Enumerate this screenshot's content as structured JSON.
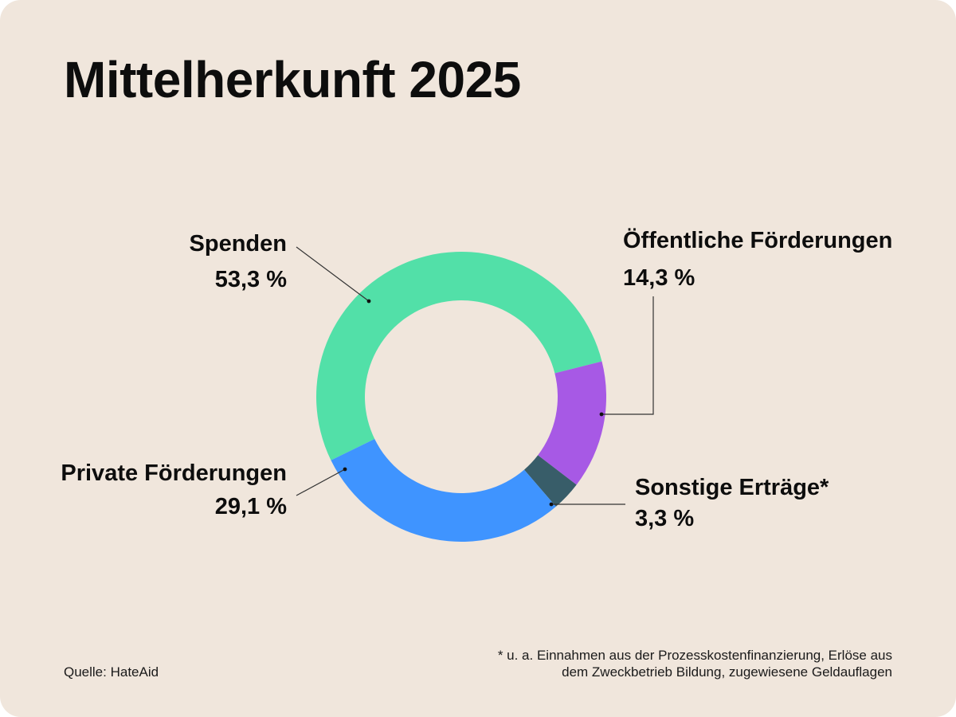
{
  "chart_data": {
    "type": "pie",
    "variant": "donut",
    "title": "Mittelherkunft 2025",
    "slices": [
      {
        "name": "Spenden",
        "value": 53.3,
        "label": "53,3 %",
        "color": "#52e0a8"
      },
      {
        "name": "Öffentliche Förderungen",
        "value": 14.3,
        "label": "14,3 %",
        "color": "#a759e5"
      },
      {
        "name": "Sonstige Erträge*",
        "value": 3.3,
        "label": "3,3 %",
        "color": "#385d69"
      },
      {
        "name": "Private Förderungen",
        "value": 29.1,
        "label": "29,1 %",
        "color": "#3f94ff"
      }
    ]
  },
  "footer": {
    "source": "Quelle: HateAid",
    "footnote_line1": "* u. a. Einnahmen aus der Prozesskostenfinanzierung, Erlöse aus",
    "footnote_line2": "dem Zweckbetrieb Bildung, zugewiesene Geldauflagen"
  },
  "colors": {
    "background": "#f0e6dc",
    "text": "#0d0d0d"
  }
}
